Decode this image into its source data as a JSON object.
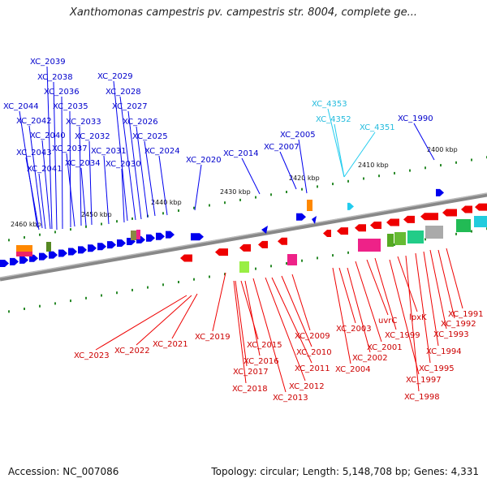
{
  "title": "Xanthomonas campestris pv. campestris str. 8004, complete ge...",
  "footer": {
    "accession": "Accession: NC_007086",
    "topology": "Topology: circular; Length: 5,148,708 bp; Genes: 4,331"
  },
  "colors": {
    "forward": "#0000ee",
    "reverse": "#ee0000",
    "rna": "#22ccee",
    "backbone": "#7a7a7a",
    "tick": "#2a8a2a"
  },
  "kbp_labels": [
    "2400 kbp",
    "2410 kbp",
    "2420 kbp",
    "2430 kbp",
    "2440 kbp",
    "2450 kbp",
    "2460 kbp"
  ],
  "top_genes": [
    "XC_2039",
    "XC_2038",
    "XC_2036",
    "XC_2035",
    "XC_2044",
    "XC_2033",
    "XC_2042",
    "XC_2040",
    "XC_2032",
    "XC_2037",
    "XC_2043",
    "XC_2034",
    "XC_2031",
    "XC_2041",
    "XC_2030",
    "XC_2029",
    "XC_2028",
    "XC_2027",
    "XC_2026",
    "XC_2025",
    "XC_2024",
    "XC_2020",
    "XC_2014",
    "XC_2007",
    "XC_2005",
    "XC_1990"
  ],
  "rna_genes": [
    "XC_4353",
    "XC_4352",
    "XC_4351"
  ],
  "bottom_genes": [
    "XC_2023",
    "XC_2022",
    "XC_2021",
    "XC_2019",
    "XC_2015",
    "XC_2016",
    "XC_2017",
    "XC_2018",
    "XC_2013",
    "XC_2012",
    "XC_2011",
    "XC_2010",
    "XC_2009",
    "XC_2003",
    "XC_2004",
    "XC_2002",
    "XC_2001",
    "uvrC",
    "XC_1999",
    "lpxK",
    "XC_1997",
    "XC_1998",
    "XC_1995",
    "XC_1994",
    "XC_1993",
    "XC_1992",
    "XC_1991"
  ]
}
